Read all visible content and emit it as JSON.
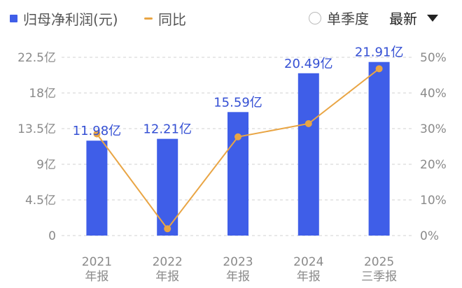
{
  "legend": {
    "bar_label": "归母净利润(元)",
    "line_label": "同比"
  },
  "controls": {
    "radio_label": "单季度",
    "sort_label": "最新"
  },
  "colors": {
    "bar": "#3f5ee8",
    "line": "#e9a544",
    "data_label": "#3550d4"
  },
  "chart_data": {
    "type": "bar",
    "categories": [
      [
        "2021",
        "年报"
      ],
      [
        "2022",
        "年报"
      ],
      [
        "2023",
        "年报"
      ],
      [
        "2024",
        "年报"
      ],
      [
        "2025",
        "三季报"
      ]
    ],
    "series": [
      {
        "name": "归母净利润(元)",
        "type": "bar",
        "axis": "left",
        "values": [
          11.98,
          12.21,
          15.59,
          20.49,
          21.91
        ],
        "labels": [
          "11.98亿",
          "12.21亿",
          "15.59亿",
          "20.49亿",
          "21.91亿"
        ]
      },
      {
        "name": "同比",
        "type": "line",
        "axis": "right",
        "values": [
          28.5,
          1.9,
          27.7,
          31.4,
          46.8
        ]
      }
    ],
    "y_left": {
      "ylim": [
        0,
        22.5
      ],
      "ticks": [
        0,
        4.5,
        9,
        13.5,
        18,
        22.5
      ],
      "tick_labels": [
        "0",
        "4.5亿",
        "9亿",
        "13.5亿",
        "18亿",
        "22.5亿"
      ]
    },
    "y_right": {
      "ylim": [
        0,
        50
      ],
      "ticks": [
        0,
        10,
        20,
        30,
        40,
        50
      ],
      "tick_labels": [
        "0%",
        "10%",
        "20%",
        "30%",
        "40%",
        "50%"
      ]
    },
    "grid": true
  }
}
